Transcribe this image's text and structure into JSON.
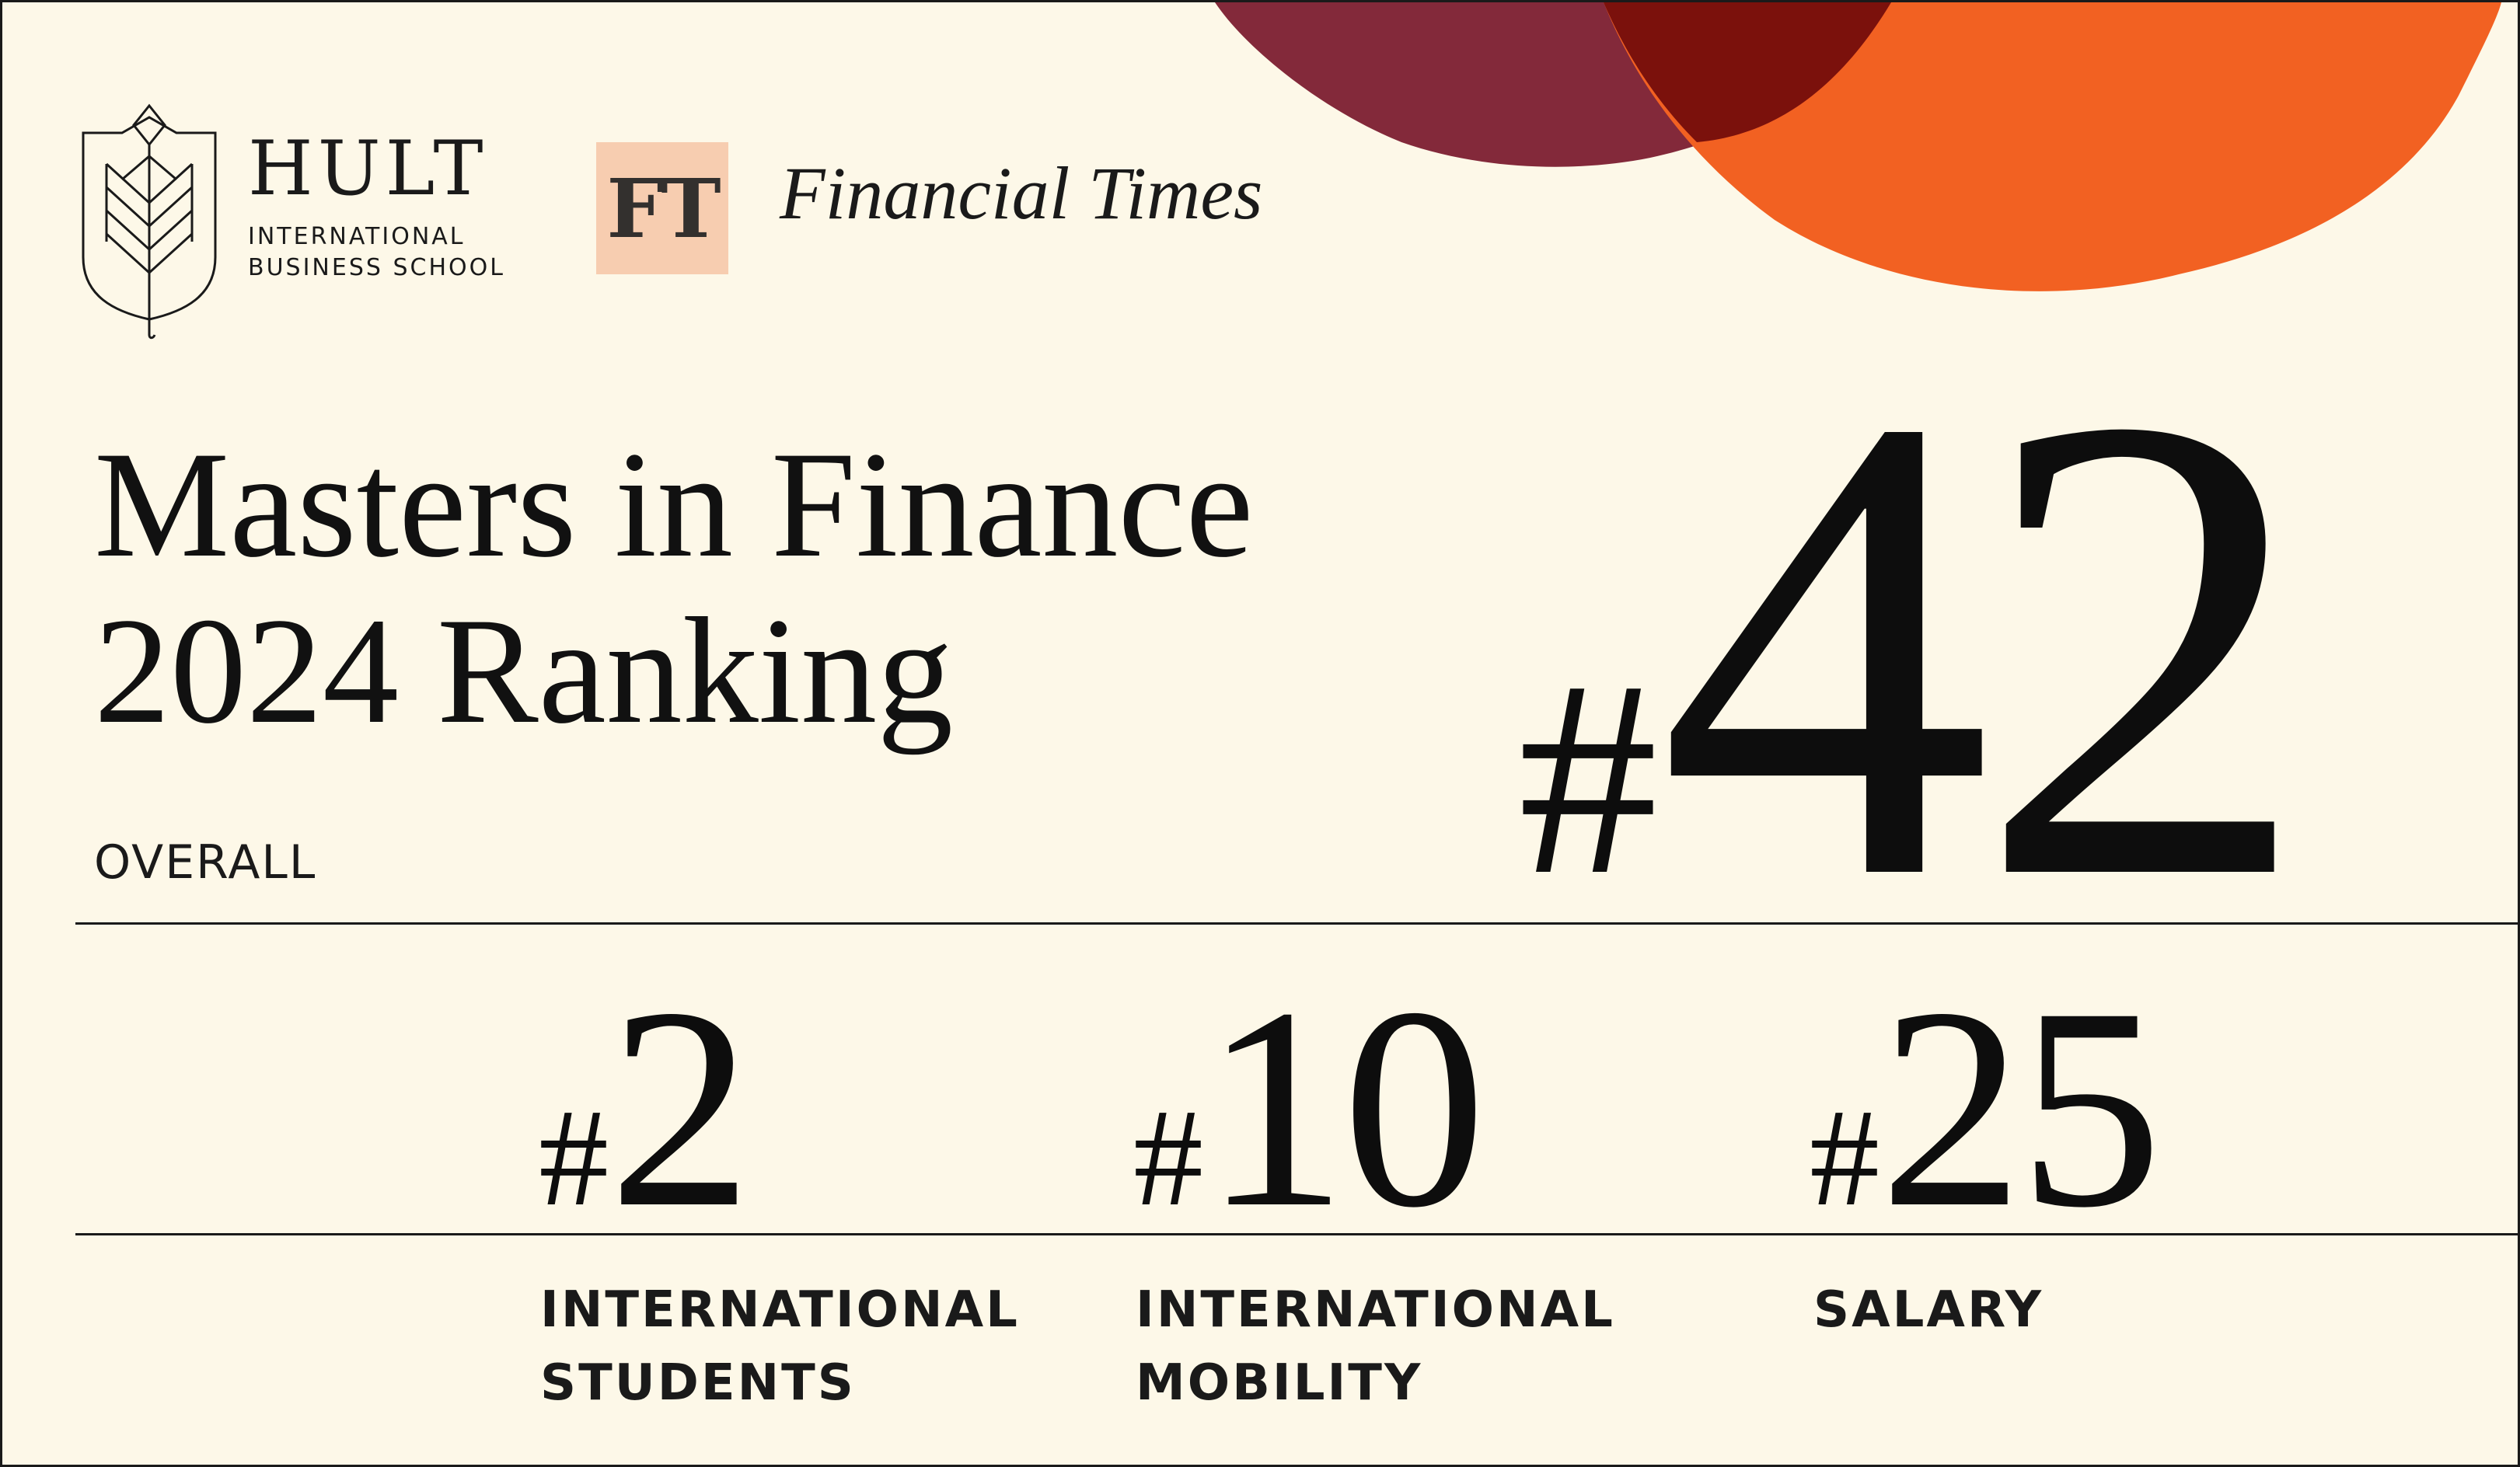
{
  "brand": {
    "hult_name": "HULT",
    "hult_subline_1": "INTERNATIONAL",
    "hult_subline_2": "BUSINESS SCHOOL",
    "ft_mark": "FT",
    "ft_name": "Financial Times",
    "ft_box_color": "#f7cdb0"
  },
  "headline": {
    "line1": "Masters in Finance",
    "line2": "2024 Ranking"
  },
  "overall": {
    "label": "OVERALL",
    "hash": "#",
    "rank": "42"
  },
  "stats": [
    {
      "hash": "#",
      "rank": "2",
      "label": "INTERNATIONAL\nSTUDENTS"
    },
    {
      "hash": "#",
      "rank": "10",
      "label": "INTERNATIONAL\nMOBILITY"
    },
    {
      "hash": "#",
      "rank": "25",
      "label": "SALARY"
    }
  ],
  "colors": {
    "background": "#fdf8e8",
    "maroon": "#83293a",
    "orange": "#f26122",
    "overlap": "#7b110c",
    "ink": "#111111"
  }
}
